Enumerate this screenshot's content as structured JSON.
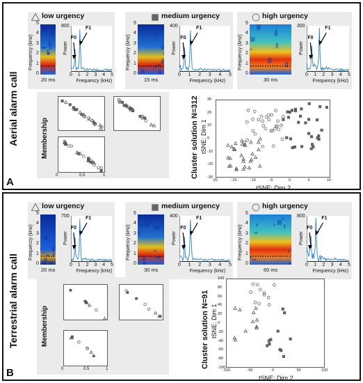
{
  "panels": [
    {
      "id": "A",
      "side_title": "Aerial alarm call",
      "letter": "A",
      "categories": [
        {
          "label": "low urgency",
          "symbol": "triangle",
          "duration": "20 ms",
          "fft_ymax": "800"
        },
        {
          "label": "medium urgency",
          "symbol": "square",
          "duration": "15 ms",
          "fft_ymax": "400"
        },
        {
          "label": "high urgency",
          "symbol": "circle",
          "duration": "30 ms",
          "fft_ymax": "300"
        }
      ],
      "cluster_title": "Cluster solution N=312",
      "tsne_x": "tSNE: Dim 2",
      "tsne_y": "tSNE: Dim 1",
      "tsne_xticks": [
        "-20",
        "-15",
        "-10",
        "-5",
        "0",
        "5",
        "10"
      ],
      "tsne_yticks": [
        "30",
        "20",
        "10",
        "0",
        "-10",
        "-20",
        "-30"
      ]
    },
    {
      "id": "B",
      "side_title": "Terrestrial alarm call",
      "letter": "B",
      "categories": [
        {
          "label": "low urgency",
          "symbol": "triangle",
          "duration": "20 ms",
          "fft_ymax": "700"
        },
        {
          "label": "medium urgency",
          "symbol": "square",
          "duration": "30 ms",
          "fft_ymax": "400"
        },
        {
          "label": "high urgency",
          "symbol": "circle",
          "duration": "60 ms",
          "fft_ymax": "800"
        }
      ],
      "cluster_title": "Cluster solution N=91",
      "tsne_x": "tSNE: Dim 2",
      "tsne_y": "tSNE: Dim 1",
      "tsne_xticks": [
        "-100",
        "-50",
        "0",
        "50",
        "100"
      ],
      "tsne_yticks": [
        "100",
        "80",
        "60",
        "40",
        "20",
        "0",
        "-20",
        "-40",
        "-60",
        "-80",
        "-100"
      ]
    }
  ],
  "common": {
    "freq_label": "Frequency (kHz)",
    "power_label": "Power",
    "f0": "F0",
    "f1": "F1",
    "membership": "Membership",
    "freq_ticks": [
      "0",
      "1",
      "2",
      "3",
      "4",
      "5"
    ],
    "mem_ticks": [
      "0",
      "0.5",
      "1"
    ]
  },
  "colors": {
    "spec_low": "#0a2a9a",
    "spec_high": "#e03010",
    "fft_line": "#2a7fc4",
    "marker": "#555555",
    "frame": "#111111",
    "grey_bg": "#ebebeb"
  }
}
